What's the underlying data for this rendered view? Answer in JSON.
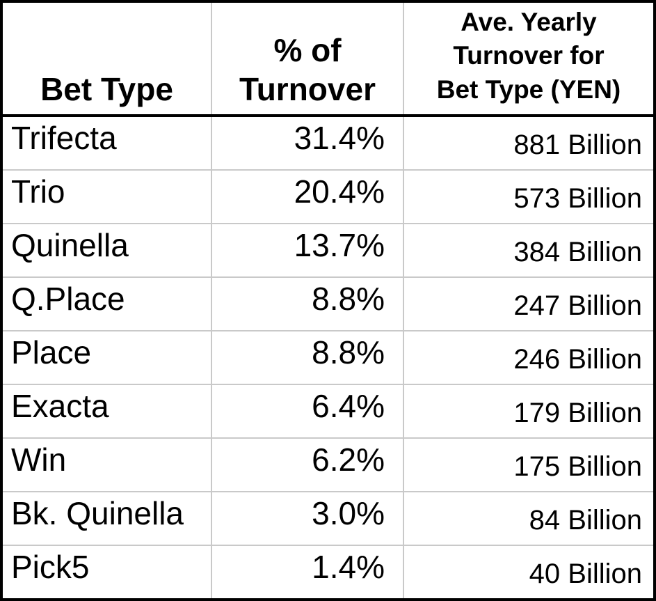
{
  "table": {
    "headers": {
      "bet_type": "Bet Type",
      "pct_turnover": "% of\nTurnover",
      "avg_yearly": "Ave. Yearly\nTurnover for\nBet Type (YEN)"
    },
    "rows": [
      {
        "bet_type": "Trifecta",
        "pct": "31.4%",
        "turnover": "881 Billion"
      },
      {
        "bet_type": "Trio",
        "pct": "20.4%",
        "turnover": "573 Billion"
      },
      {
        "bet_type": "Quinella",
        "pct": "13.7%",
        "turnover": "384 Billion"
      },
      {
        "bet_type": "Q.Place",
        "pct": "8.8%",
        "turnover": "247 Billion"
      },
      {
        "bet_type": "Place",
        "pct": "8.8%",
        "turnover": "246 Billion"
      },
      {
        "bet_type": "Exacta",
        "pct": "6.4%",
        "turnover": "179 Billion"
      },
      {
        "bet_type": "Win",
        "pct": "6.2%",
        "turnover": "175 Billion"
      },
      {
        "bet_type": "Bk. Quinella",
        "pct": "3.0%",
        "turnover": "84 Billion"
      },
      {
        "bet_type": "Pick5",
        "pct": "1.4%",
        "turnover": "40 Billion"
      }
    ]
  },
  "chart_data": {
    "type": "table",
    "columns": [
      "Bet Type",
      "% of Turnover",
      "Ave. Yearly Turnover for Bet Type (YEN)"
    ],
    "rows": [
      [
        "Trifecta",
        31.4,
        "881 Billion"
      ],
      [
        "Trio",
        20.4,
        "573 Billion"
      ],
      [
        "Quinella",
        13.7,
        "384 Billion"
      ],
      [
        "Q.Place",
        8.8,
        "247 Billion"
      ],
      [
        "Place",
        8.8,
        "246 Billion"
      ],
      [
        "Exacta",
        6.4,
        "179 Billion"
      ],
      [
        "Win",
        6.2,
        "175 Billion"
      ],
      [
        "Bk. Quinella",
        3.0,
        "84 Billion"
      ],
      [
        "Pick5",
        1.4,
        "40 Billion"
      ]
    ],
    "pct_unit": "%",
    "turnover_unit": "YEN (Billions)"
  },
  "colors": {
    "outer_border": "#000000",
    "header_divider": "#000000",
    "grid_line": "#c9c9c9",
    "text": "#000000",
    "background": "#ffffff"
  }
}
